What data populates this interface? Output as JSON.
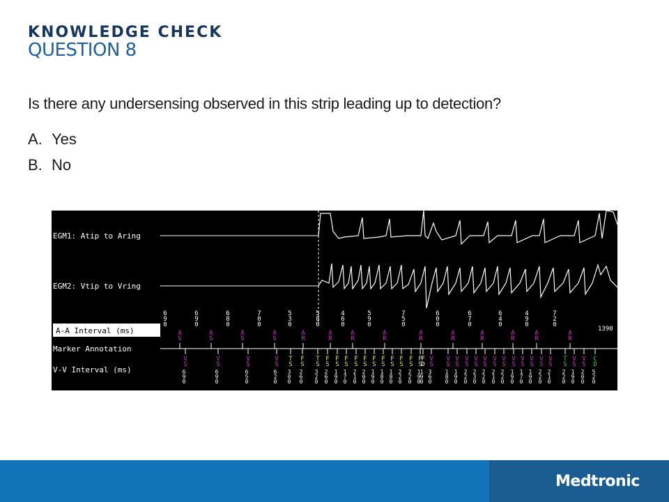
{
  "slide": {
    "kicker": "KNOWLEDGE CHECK",
    "title": "QUESTION 8",
    "question": "Is there any undersensing observed in this strip leading up to detection?",
    "options": [
      {
        "letter": "A.",
        "text": "Yes"
      },
      {
        "letter": "B.",
        "text": "No"
      }
    ]
  },
  "strip": {
    "labels": {
      "egm1": "EGM1: Atip to Aring",
      "egm2": "EGM2: Vtip to Vring",
      "aa": "A-A Interval (ms)",
      "marker": "Marker Annotation",
      "vv": "V-V Interval (ms)"
    },
    "aa_intervals": [
      "690",
      "690",
      "680",
      "700",
      "530",
      "580",
      "460",
      "590",
      "750",
      "600",
      "670",
      "640",
      "490",
      "720"
    ],
    "aa_last": "1390",
    "atrial_markers": [
      "AS",
      "AS",
      "AS",
      "AS",
      "AR",
      "AR",
      "AR",
      "AR",
      "AR",
      "AR",
      "AR",
      "AR",
      "AR",
      "AR"
    ],
    "ventricular_markers": [
      "VS",
      "VS",
      "VS",
      "VS",
      "TS",
      "FS",
      "TS",
      "FS",
      "FS",
      "FS",
      "FS",
      "FS",
      "FS",
      "FS",
      "FS",
      "FS",
      "FS",
      "FS",
      "FD",
      "VS",
      "VS",
      "VS",
      "VS",
      "VS",
      "VS",
      "VS",
      "VS",
      "VS",
      "VS",
      "VS",
      "VS",
      "VS",
      "TS",
      "VS",
      "VS",
      "CD"
    ],
    "vv_intervals": [
      "690",
      "690",
      "650",
      "620",
      "300",
      "260",
      "320",
      "260",
      "190",
      "170",
      "210",
      "200",
      "190",
      "180",
      "180",
      "220",
      "220",
      "190",
      "190",
      "360",
      "180",
      "190",
      "220",
      "230",
      "220",
      "210",
      "220",
      "190",
      "170",
      "190",
      "220",
      "210",
      "220",
      "190",
      "200",
      "520"
    ]
  },
  "colors": {
    "brand_dark": "#17365d",
    "brand_blue": "#1f5fa0",
    "footer_blue": "#1174b8",
    "footer_dark": "#1b5c93",
    "marker_sense": "#cc33cc",
    "marker_tach": "#e6e66a",
    "marker_detect": "#33cc33"
  },
  "footer": {
    "logo": "Medtronic"
  }
}
